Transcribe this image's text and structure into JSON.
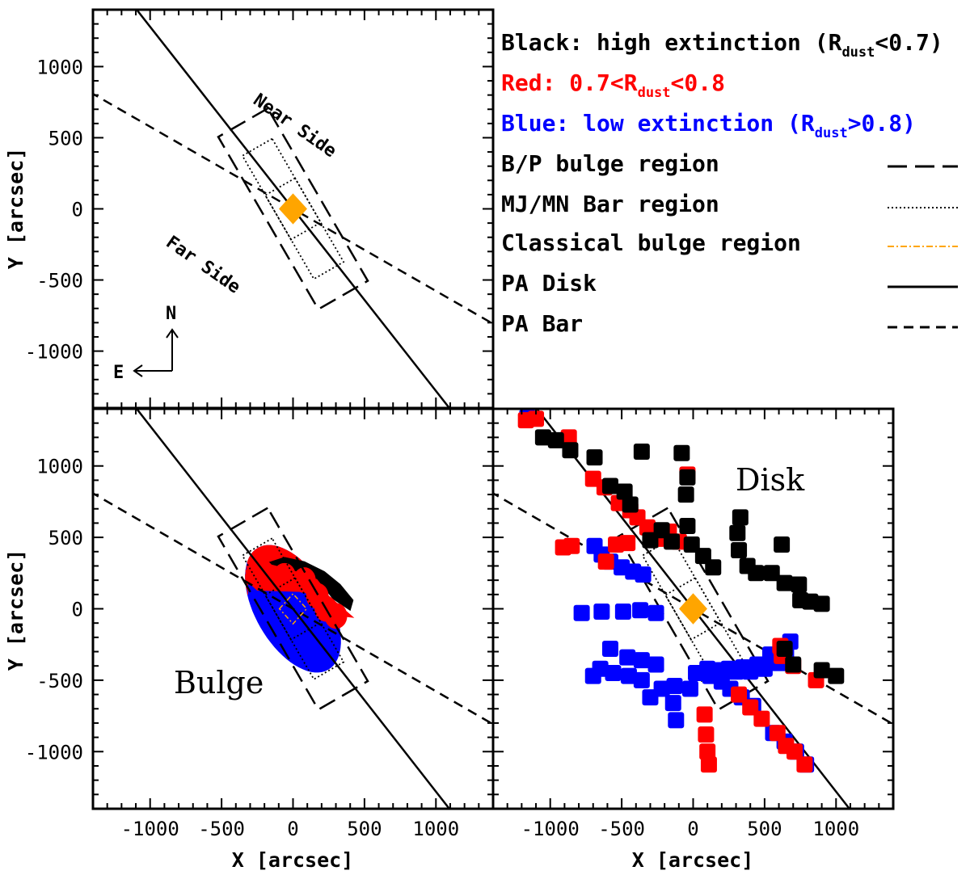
{
  "chart_data": {
    "type": "scatter",
    "x_label": "X [arcsec]",
    "y_label": "Y [arcsec]",
    "xlim": [
      -1400,
      1400
    ],
    "ylim": [
      -1400,
      1400
    ],
    "x_ticks": [
      -1000,
      -500,
      0,
      500,
      1000
    ],
    "y_ticks": [
      -1000,
      -500,
      0,
      500,
      1000
    ],
    "colors": {
      "black": "#000000",
      "red": "#ff0000",
      "blue": "#0000ff",
      "orange": "#ffa500"
    },
    "legend": {
      "line1": {
        "prefix": "Black: high extinction (R",
        "sub": "dust",
        "suffix": "<0.7)"
      },
      "line2": {
        "prefix": "Red:  0.7<R",
        "sub": "dust",
        "suffix": "<0.8"
      },
      "line3": {
        "prefix": "Blue: low extinction  (R",
        "sub": "dust",
        "suffix": ">0.8)"
      },
      "styles": [
        {
          "label": "B/P bulge region",
          "dash": "long-dash",
          "color": "#000000"
        },
        {
          "label": "MJ/MN Bar region",
          "dash": "dotted",
          "color": "#000000"
        },
        {
          "label": "Classical bulge region",
          "dash": "dash-dot",
          "color": "#ffa500"
        },
        {
          "label": "PA Disk",
          "dash": "solid",
          "color": "#000000"
        },
        {
          "label": "PA Bar",
          "dash": "dashed",
          "color": "#000000"
        }
      ]
    },
    "geometry": {
      "pa_disk_deg": 38,
      "pa_bar_deg": 60,
      "bp_bulge_box": {
        "half_length": 700,
        "half_width": 200,
        "angle_deg": 60
      },
      "bar_box": {
        "half_length": 500,
        "half_width": 120,
        "angle_deg": 60
      },
      "inner_box": {
        "half_length": 90,
        "half_width": 120,
        "angle_deg": 60
      },
      "classical_bulge_box": {
        "half_length": 95,
        "half_width": 95,
        "angle_deg": 38
      }
    },
    "panels": [
      {
        "id": "schematic",
        "annotations": {
          "near": "Near Side",
          "far": "Far Side",
          "north": "N",
          "east": "E"
        }
      },
      {
        "id": "bulge",
        "label": "Bulge",
        "ellipse": {
          "a": 490,
          "b": 260,
          "angle_deg": 60
        },
        "blue_region": "south-east side (y < ~0)",
        "red_region": "north arc (y ~ 150 to 350)",
        "black_region": "north-east cap (y > ~250)"
      },
      {
        "id": "disk",
        "label": "Disk",
        "black_points": [
          [
            -1050,
            1200
          ],
          [
            -960,
            1180
          ],
          [
            -860,
            1110
          ],
          [
            -690,
            1060
          ],
          [
            -360,
            1100
          ],
          [
            -80,
            1090
          ],
          [
            -40,
            920
          ],
          [
            -50,
            800
          ],
          [
            -40,
            580
          ],
          [
            -10,
            450
          ],
          [
            70,
            370
          ],
          [
            140,
            290
          ],
          [
            330,
            640
          ],
          [
            310,
            530
          ],
          [
            320,
            410
          ],
          [
            380,
            300
          ],
          [
            440,
            250
          ],
          [
            620,
            450
          ],
          [
            550,
            250
          ],
          [
            640,
            180
          ],
          [
            740,
            170
          ],
          [
            750,
            60
          ],
          [
            820,
            50
          ],
          [
            900,
            35
          ],
          [
            640,
            -280
          ],
          [
            700,
            -390
          ],
          [
            900,
            -430
          ],
          [
            1000,
            -470
          ],
          [
            -580,
            860
          ],
          [
            -480,
            820
          ],
          [
            -440,
            730
          ],
          [
            -220,
            550
          ],
          [
            -150,
            470
          ],
          [
            -300,
            480
          ]
        ],
        "red_points": [
          [
            -1170,
            1320
          ],
          [
            -1100,
            1330
          ],
          [
            -870,
            1200
          ],
          [
            -700,
            910
          ],
          [
            -620,
            850
          ],
          [
            -520,
            740
          ],
          [
            -440,
            690
          ],
          [
            -390,
            640
          ],
          [
            -320,
            570
          ],
          [
            -250,
            490
          ],
          [
            -170,
            540
          ],
          [
            -100,
            470
          ],
          [
            -40,
            940
          ],
          [
            -910,
            430
          ],
          [
            -850,
            440
          ],
          [
            -610,
            330
          ],
          [
            -540,
            450
          ],
          [
            -460,
            460
          ],
          [
            610,
            -260
          ],
          [
            620,
            -330
          ],
          [
            700,
            -400
          ],
          [
            860,
            -500
          ],
          [
            80,
            -740
          ],
          [
            90,
            -880
          ],
          [
            100,
            -1000
          ],
          [
            110,
            -1090
          ],
          [
            320,
            -600
          ],
          [
            400,
            -690
          ],
          [
            480,
            -770
          ],
          [
            590,
            -870
          ],
          [
            650,
            -960
          ],
          [
            710,
            -1000
          ],
          [
            780,
            -1090
          ]
        ],
        "blue_points": [
          [
            -1160,
            1340
          ],
          [
            -690,
            440
          ],
          [
            -640,
            380
          ],
          [
            -580,
            330
          ],
          [
            -500,
            290
          ],
          [
            -420,
            260
          ],
          [
            -350,
            240
          ],
          [
            -780,
            -30
          ],
          [
            -640,
            -20
          ],
          [
            -490,
            -20
          ],
          [
            -370,
            -10
          ],
          [
            -260,
            -30
          ],
          [
            -580,
            -280
          ],
          [
            -460,
            -340
          ],
          [
            -360,
            -360
          ],
          [
            -260,
            -390
          ],
          [
            -700,
            -470
          ],
          [
            -650,
            -420
          ],
          [
            -560,
            -450
          ],
          [
            -450,
            -470
          ],
          [
            -360,
            -500
          ],
          [
            -300,
            -620
          ],
          [
            -220,
            -560
          ],
          [
            -130,
            -540
          ],
          [
            -140,
            -660
          ],
          [
            -120,
            -780
          ],
          [
            -20,
            -560
          ],
          [
            20,
            -450
          ],
          [
            120,
            -470
          ],
          [
            200,
            -510
          ],
          [
            260,
            -560
          ],
          [
            340,
            -620
          ],
          [
            420,
            -680
          ],
          [
            100,
            -420
          ],
          [
            200,
            -430
          ],
          [
            300,
            -440
          ],
          [
            400,
            -440
          ],
          [
            500,
            -420
          ],
          [
            600,
            -380
          ],
          [
            650,
            -300
          ],
          [
            680,
            -230
          ],
          [
            540,
            -320
          ],
          [
            450,
            -390
          ],
          [
            350,
            -410
          ],
          [
            250,
            -420
          ],
          [
            560,
            -870
          ],
          [
            640,
            -930
          ],
          [
            720,
            -1000
          ],
          [
            790,
            -1090
          ]
        ]
      }
    ]
  }
}
